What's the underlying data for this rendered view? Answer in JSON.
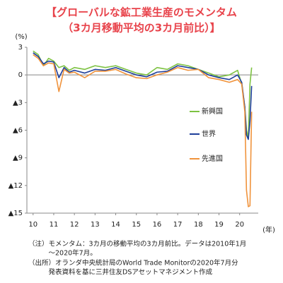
{
  "chart_data": {
    "type": "line",
    "title": [
      "【グローバルな鉱工業生産のモメンタム",
      "（3カ月移動平均の3カ月前比）】"
    ],
    "y_unit": "(%)",
    "x_unit": "(年)",
    "x": [
      10,
      10.25,
      10.5,
      10.75,
      11,
      11.25,
      11.5,
      11.75,
      12,
      12.5,
      13,
      13.5,
      14,
      14.5,
      15,
      15.5,
      16,
      16.5,
      17,
      17.5,
      18,
      18.5,
      19,
      19.5,
      19.9,
      20.1,
      20.25,
      20.33,
      20.42,
      20.5,
      20.58
    ],
    "series": [
      {
        "name": "新興国",
        "color": "#7dc242",
        "values": [
          2.6,
          2.2,
          1.0,
          1.8,
          1.5,
          0.8,
          1.0,
          0.5,
          0.8,
          0.6,
          1.0,
          0.8,
          1.0,
          0.6,
          0.2,
          0.0,
          0.8,
          0.6,
          1.2,
          1.0,
          0.6,
          0.2,
          -0.2,
          0.0,
          0.5,
          -1.0,
          -3.5,
          -6.0,
          -6.8,
          -1.0,
          0.8
        ]
      },
      {
        "name": "世界",
        "color": "#1f3f9a",
        "values": [
          2.4,
          2.0,
          1.2,
          1.5,
          1.4,
          -0.3,
          0.8,
          0.3,
          0.5,
          0.2,
          0.6,
          0.5,
          0.8,
          0.4,
          0.0,
          -0.2,
          0.3,
          0.4,
          1.0,
          0.8,
          0.6,
          0.0,
          -0.3,
          -0.5,
          0.0,
          -0.8,
          -3.5,
          -6.5,
          -7.0,
          -5.0,
          -1.2
        ]
      },
      {
        "name": "先進国",
        "color": "#f0933c",
        "values": [
          2.2,
          1.8,
          1.0,
          1.3,
          1.2,
          -1.8,
          0.6,
          0.2,
          0.3,
          -0.3,
          0.4,
          0.4,
          0.6,
          0.1,
          -0.3,
          -0.4,
          0.0,
          0.3,
          0.8,
          0.5,
          0.6,
          -0.3,
          -0.5,
          -0.8,
          -0.5,
          -1.0,
          -4.0,
          -12.5,
          -14.3,
          -14.2,
          -4.0
        ]
      }
    ],
    "xlim": [
      9.7,
      20.9
    ],
    "xticks": [
      10,
      11,
      12,
      13,
      14,
      15,
      16,
      17,
      18,
      19,
      20
    ],
    "ylim": [
      -15,
      3
    ],
    "yticks": [
      3,
      0,
      {
        "value": -3,
        "label": "▲3"
      },
      {
        "value": -6,
        "label": "▲6"
      },
      {
        "value": -9,
        "label": "▲9"
      },
      {
        "value": -12,
        "label": "▲12"
      },
      {
        "value": -15,
        "label": "▲15"
      }
    ],
    "notes": [
      "（注）モメンタム：3カ月の移動平均の3カ月前比。データは2010年1月",
      "　　　～2020年7月。",
      "（出所）オランダ中央統計局のWorld Trade Monitorの2020年7月分",
      "　　　発表資料を基に三井住友DSアセットマネジメント作成"
    ]
  }
}
